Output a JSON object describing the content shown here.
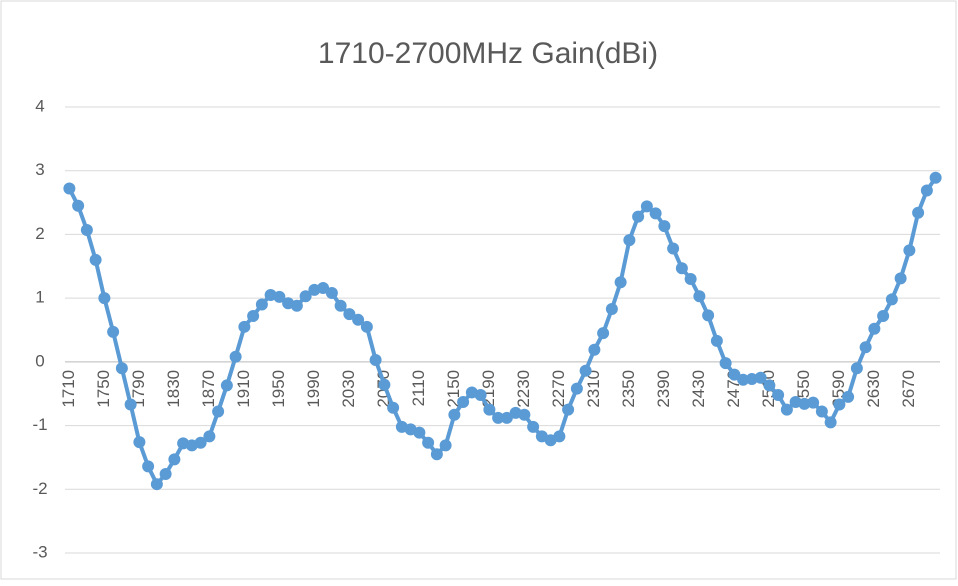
{
  "chart_data": {
    "type": "line",
    "title": "1710-2700MHz Gain(dBi)",
    "categories": [
      "1710",
      null,
      null,
      null,
      "1750",
      null,
      null,
      null,
      "1790",
      null,
      null,
      null,
      "1830",
      null,
      null,
      null,
      "1870",
      null,
      null,
      null,
      "1910",
      null,
      null,
      null,
      "1950",
      null,
      null,
      null,
      "1990",
      null,
      null,
      null,
      "2030",
      null,
      null,
      null,
      "2070",
      null,
      null,
      null,
      "2110",
      null,
      null,
      null,
      "2150",
      null,
      null,
      null,
      "2190",
      null,
      null,
      null,
      "2230",
      null,
      null,
      null,
      "2270",
      null,
      null,
      null,
      "2310",
      null,
      null,
      null,
      "2350",
      null,
      null,
      null,
      "2390",
      null,
      null,
      null,
      "2430",
      null,
      null,
      null,
      "2470",
      null,
      null,
      null,
      "2510",
      null,
      null,
      null,
      "2550",
      null,
      null,
      null,
      "2590",
      null,
      null,
      null,
      "2630",
      null,
      null,
      null,
      "2670",
      null,
      null,
      null
    ],
    "series": [
      {
        "color": "#5b9bd5",
        "values": [
          2.72,
          2.45,
          2.07,
          1.6,
          1.0,
          0.47,
          -0.1,
          -0.67,
          -1.26,
          -1.64,
          -1.92,
          -1.76,
          -1.53,
          -1.28,
          -1.31,
          -1.27,
          -1.17,
          -0.78,
          -0.37,
          0.08,
          0.55,
          0.72,
          0.9,
          1.05,
          1.02,
          0.92,
          0.88,
          1.03,
          1.13,
          1.16,
          1.08,
          0.88,
          0.75,
          0.66,
          0.55,
          0.03,
          -0.36,
          -0.72,
          -1.02,
          -1.06,
          -1.11,
          -1.27,
          -1.45,
          -1.31,
          -0.83,
          -0.63,
          -0.48,
          -0.52,
          -0.75,
          -0.88,
          -0.88,
          -0.8,
          -0.83,
          -1.02,
          -1.17,
          -1.23,
          -1.17,
          -0.75,
          -0.42,
          -0.14,
          0.19,
          0.45,
          0.83,
          1.25,
          1.91,
          2.28,
          2.44,
          2.33,
          2.13,
          1.78,
          1.47,
          1.3,
          1.03,
          0.73,
          0.33,
          -0.02,
          -0.2,
          -0.28,
          -0.27,
          -0.25,
          -0.37,
          -0.52,
          -0.75,
          -0.63,
          -0.66,
          -0.64,
          -0.78,
          -0.95,
          -0.67,
          -0.55,
          -0.1,
          0.23,
          0.52,
          0.72,
          0.98,
          1.31,
          1.75,
          2.34,
          2.69,
          2.89
        ]
      }
    ],
    "ylim": [
      -3,
      4
    ],
    "yticks": [
      -3,
      -2,
      -1,
      0,
      1,
      2,
      3,
      4
    ],
    "grid": true
  }
}
